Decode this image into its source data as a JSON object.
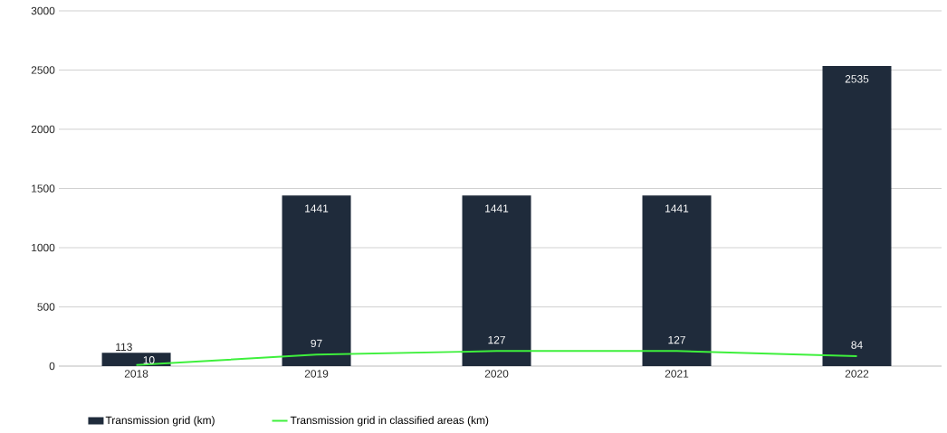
{
  "chart_data": {
    "type": "bar",
    "categories": [
      "2018",
      "2019",
      "2020",
      "2021",
      "2022"
    ],
    "series": [
      {
        "name": "Transmission grid (km)",
        "color": "#1f2b3b",
        "values": [
          113,
          1441,
          1441,
          1441,
          2535
        ]
      },
      {
        "name": "Transmission grid in classified areas (km)",
        "type": "line",
        "color": "#3ef03c",
        "values": [
          10,
          97,
          127,
          127,
          84
        ]
      }
    ],
    "ylim": [
      0,
      3000
    ],
    "yticks": [
      0,
      500,
      1000,
      1500,
      2000,
      2500,
      3000
    ],
    "grid": "y",
    "legend": "bottom",
    "data_labels": true
  }
}
